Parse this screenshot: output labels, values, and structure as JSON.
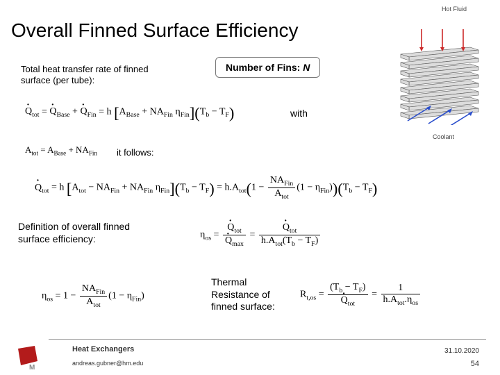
{
  "title": "Overall Finned Surface Efficiency",
  "labels": {
    "hot_fluid": "Hot Fluid",
    "coolant": "Coolant"
  },
  "text": {
    "total_rate": "Total heat transfer rate of finned surface (per tube):",
    "with": "with",
    "follows": "it follows:",
    "definition": "Definition of overall finned surface efficiency:",
    "thermal_res": "Thermal Resistance of finned surface:"
  },
  "callout": {
    "prefix": "Number of Fins: ",
    "var": "N"
  },
  "footer": {
    "title": "Heat  Exchangers",
    "email": "andreas.gubner@hm.edu",
    "date": "31.10.2020",
    "page": "54"
  },
  "diagram": {
    "tube_count": 8,
    "tube_color": "#dcdcdc",
    "tube_stroke": "#555555",
    "arrow_red": "#cc2a2a",
    "arrow_blue": "#2a4ecc",
    "bg": "#ffffff"
  },
  "logo": {
    "red": "#b31b1b",
    "grey": "#8a8a8a"
  },
  "colors": {
    "text": "#000000",
    "footer_text": "#333333",
    "rule": "#999999"
  }
}
